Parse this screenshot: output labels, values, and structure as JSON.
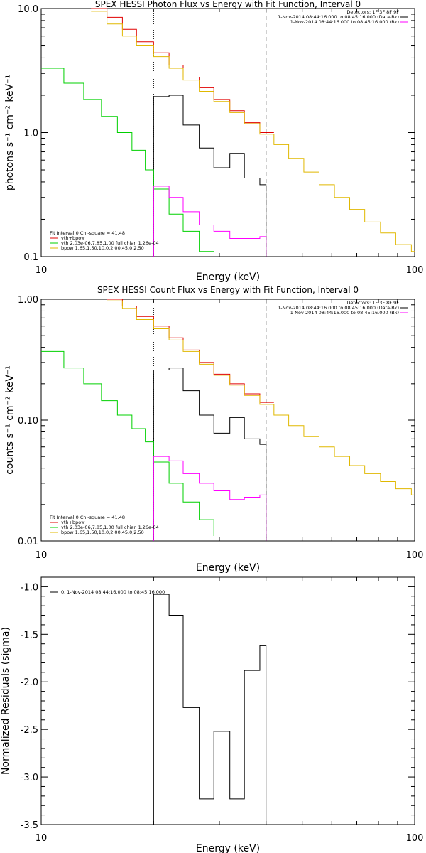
{
  "colors": {
    "total": "#000000",
    "fit_sum": "#e00000",
    "vth": "#00d000",
    "bpow": "#e0b800",
    "data_line": "#ff00ff",
    "background": "#ffffff"
  },
  "chart_data": [
    {
      "type": "line",
      "title": "SPEX HESSI Photon Flux vs Energy with Fit Function, Interval 0",
      "xlabel": "Energy (keV)",
      "ylabel": "photons s⁻¹ cm⁻² keV⁻¹",
      "xscale": "log",
      "yscale": "log",
      "xlim": [
        10,
        100
      ],
      "ylim": [
        0.1,
        10
      ],
      "xticks": [
        "10",
        "100"
      ],
      "yticks": [
        "0.1",
        "1.0",
        "10.0"
      ],
      "vlines": [
        {
          "x": 20,
          "style": "dotted"
        },
        {
          "x": 40,
          "style": "dashed"
        }
      ],
      "legend_top": [
        "Detectors: 1F 3F 8F 9F",
        "1-Nov-2014 08:44:16.000 to 08:45:16.000 (Data-Bk)",
        "1-Nov-2014 08:44:16.000 to 08:45:16.000 (Bk)"
      ],
      "legend_bottom": [
        "Fit Interval 0   Chi-square = 41.48",
        "vth+bpow",
        "vth 2.03e-06,7.85,1.00   full chian 1.26e-04",
        "bpow 1.65,1.50,10.0,2.00,45.0,2.50"
      ],
      "edges": [
        10,
        11,
        12,
        13,
        14,
        15,
        16,
        17,
        18,
        19,
        20,
        21,
        22,
        23,
        24,
        25,
        26,
        27,
        28,
        29,
        30,
        31,
        32,
        33,
        34,
        35,
        36,
        37,
        38,
        39,
        40,
        41,
        42,
        43,
        44,
        45,
        46,
        47,
        48,
        49,
        50,
        51,
        52,
        53,
        54,
        55,
        56,
        57,
        58,
        59,
        60,
        61,
        62,
        63,
        64,
        65,
        66,
        67,
        68,
        69,
        70,
        71,
        72,
        73,
        74,
        75,
        76,
        77,
        78,
        79,
        80,
        81,
        82,
        83,
        84,
        85,
        86,
        87,
        88,
        89,
        90,
        91,
        92,
        93,
        94,
        95,
        96,
        97,
        98,
        99,
        100
      ],
      "series": [
        {
          "name": "fit_sum",
          "color": "fit_sum",
          "edges": [
            13.6,
            15,
            16.5,
            18,
            20,
            22,
            24,
            26.5,
            29,
            32,
            35,
            38.5,
            42
          ],
          "values": [
            10,
            8.5,
            6.8,
            5.4,
            4.4,
            3.5,
            2.8,
            2.3,
            1.85,
            1.5,
            1.2,
            1.0
          ]
        },
        {
          "name": "bpow",
          "color": "bpow",
          "edges": [
            13.6,
            15,
            16.5,
            18,
            20,
            22,
            24,
            26.5,
            29,
            32,
            35,
            38.5,
            42,
            46,
            50.5,
            55.5,
            61,
            67,
            73.5,
            81,
            89,
            98,
            100
          ],
          "values": [
            9.5,
            7.5,
            6.0,
            5.0,
            4.1,
            3.3,
            2.65,
            2.15,
            1.78,
            1.45,
            1.18,
            0.97,
            0.8,
            0.62,
            0.48,
            0.38,
            0.3,
            0.24,
            0.19,
            0.155,
            0.125,
            0.11
          ]
        },
        {
          "name": "data",
          "color": "total",
          "edges": [
            20,
            22,
            24,
            26.5,
            29,
            32,
            35,
            38.5,
            40
          ],
          "values": [
            1.95,
            2.0,
            1.15,
            0.75,
            0.52,
            0.68,
            0.43,
            0.38
          ]
        },
        {
          "name": "vth",
          "color": "vth",
          "edges": [
            10,
            11.5,
            13,
            14.5,
            16,
            17.5,
            19,
            20,
            22,
            24,
            26.5,
            29
          ],
          "values": [
            3.3,
            2.5,
            1.85,
            1.35,
            1.0,
            0.72,
            0.5,
            0.35,
            0.22,
            0.16,
            0.11
          ]
        },
        {
          "name": "bk",
          "color": "data_line",
          "edges": [
            20,
            22,
            24,
            26.5,
            29,
            32,
            35,
            38.5,
            40
          ],
          "values": [
            0.37,
            0.3,
            0.23,
            0.18,
            0.16,
            0.14,
            0.14,
            0.145
          ]
        }
      ]
    },
    {
      "type": "line",
      "title": "SPEX HESSI Count Flux vs Energy with Fit Function, Interval 0",
      "xlabel": "Energy (keV)",
      "ylabel": "counts s⁻¹ cm⁻² keV⁻¹",
      "xscale": "log",
      "yscale": "log",
      "xlim": [
        10,
        100
      ],
      "ylim": [
        0.01,
        1
      ],
      "xticks": [
        "10",
        "100"
      ],
      "yticks": [
        "0.01",
        "0.10",
        "1.00"
      ],
      "vlines": [
        {
          "x": 20,
          "style": "dotted"
        },
        {
          "x": 40,
          "style": "dashed"
        }
      ],
      "legend_top": [
        "Detectors: 1F 3F 8F 9F",
        "1-Nov-2014 08:44:16.000 to 08:45:16.000 (Data-Bk)",
        "1-Nov-2014 08:44:16.000 to 08:45:16.000 (Bk)"
      ],
      "legend_bottom": [
        "Fit Interval 0   Chi-square = 41.48",
        "vth+bpow",
        "vth 2.03e-06,7.85,1.00   full chian 1.26e-04",
        "bpow 1.65,1.50,10.0,2.00,45.0,2.50"
      ],
      "series": [
        {
          "name": "fit_sum",
          "color": "fit_sum",
          "edges": [
            15,
            16.5,
            18,
            20,
            22,
            24,
            26.5,
            29,
            32,
            35,
            38.5,
            42
          ],
          "values": [
            1.0,
            0.88,
            0.72,
            0.6,
            0.48,
            0.38,
            0.3,
            0.24,
            0.2,
            0.165,
            0.14
          ]
        },
        {
          "name": "bpow",
          "color": "bpow",
          "edges": [
            15,
            16.5,
            18,
            20,
            22,
            24,
            26.5,
            29,
            32,
            35,
            38.5,
            42,
            46,
            50.5,
            55.5,
            61,
            67,
            73.5,
            81,
            89,
            98,
            100
          ],
          "values": [
            0.97,
            0.84,
            0.68,
            0.57,
            0.46,
            0.37,
            0.29,
            0.235,
            0.195,
            0.16,
            0.135,
            0.11,
            0.09,
            0.073,
            0.06,
            0.05,
            0.042,
            0.036,
            0.031,
            0.027,
            0.024
          ]
        },
        {
          "name": "data",
          "color": "total",
          "edges": [
            20,
            22,
            24,
            26.5,
            29,
            32,
            35,
            38.5,
            40
          ],
          "values": [
            0.26,
            0.27,
            0.175,
            0.11,
            0.078,
            0.105,
            0.07,
            0.063
          ]
        },
        {
          "name": "vth",
          "color": "vth",
          "edges": [
            10,
            11.5,
            13,
            14.5,
            16,
            17.5,
            19,
            20,
            22,
            24,
            26.5,
            29
          ],
          "values": [
            0.37,
            0.27,
            0.2,
            0.145,
            0.11,
            0.085,
            0.066,
            0.045,
            0.03,
            0.021,
            0.015,
            0.011
          ]
        },
        {
          "name": "bk",
          "color": "data_line",
          "edges": [
            20,
            22,
            24,
            26.5,
            29,
            32,
            35,
            38.5,
            40
          ],
          "values": [
            0.05,
            0.046,
            0.036,
            0.03,
            0.026,
            0.022,
            0.023,
            0.024
          ]
        }
      ]
    },
    {
      "type": "line",
      "title": "",
      "xlabel": "Energy (keV)",
      "ylabel": "Normalized Residuals (sigma)",
      "xscale": "log",
      "yscale": "linear",
      "xlim": [
        10,
        100
      ],
      "ylim": [
        -3.5,
        -0.9
      ],
      "xticks": [
        "10",
        "100"
      ],
      "yticks": [
        "-3.5",
        "-3.0",
        "-2.5",
        "-2.0",
        "-1.5",
        "-1.0"
      ],
      "legend_top": [
        "0.  1-Nov-2014 08:44:16.000 to 08:45:16.000"
      ],
      "series": [
        {
          "name": "residuals",
          "color": "total",
          "edges": [
            20,
            22,
            24,
            26.5,
            29,
            32,
            35,
            38.5,
            40
          ],
          "values": [
            -1.08,
            -1.3,
            -2.27,
            -3.23,
            -2.52,
            -3.23,
            -1.88,
            -1.62
          ]
        }
      ]
    }
  ]
}
